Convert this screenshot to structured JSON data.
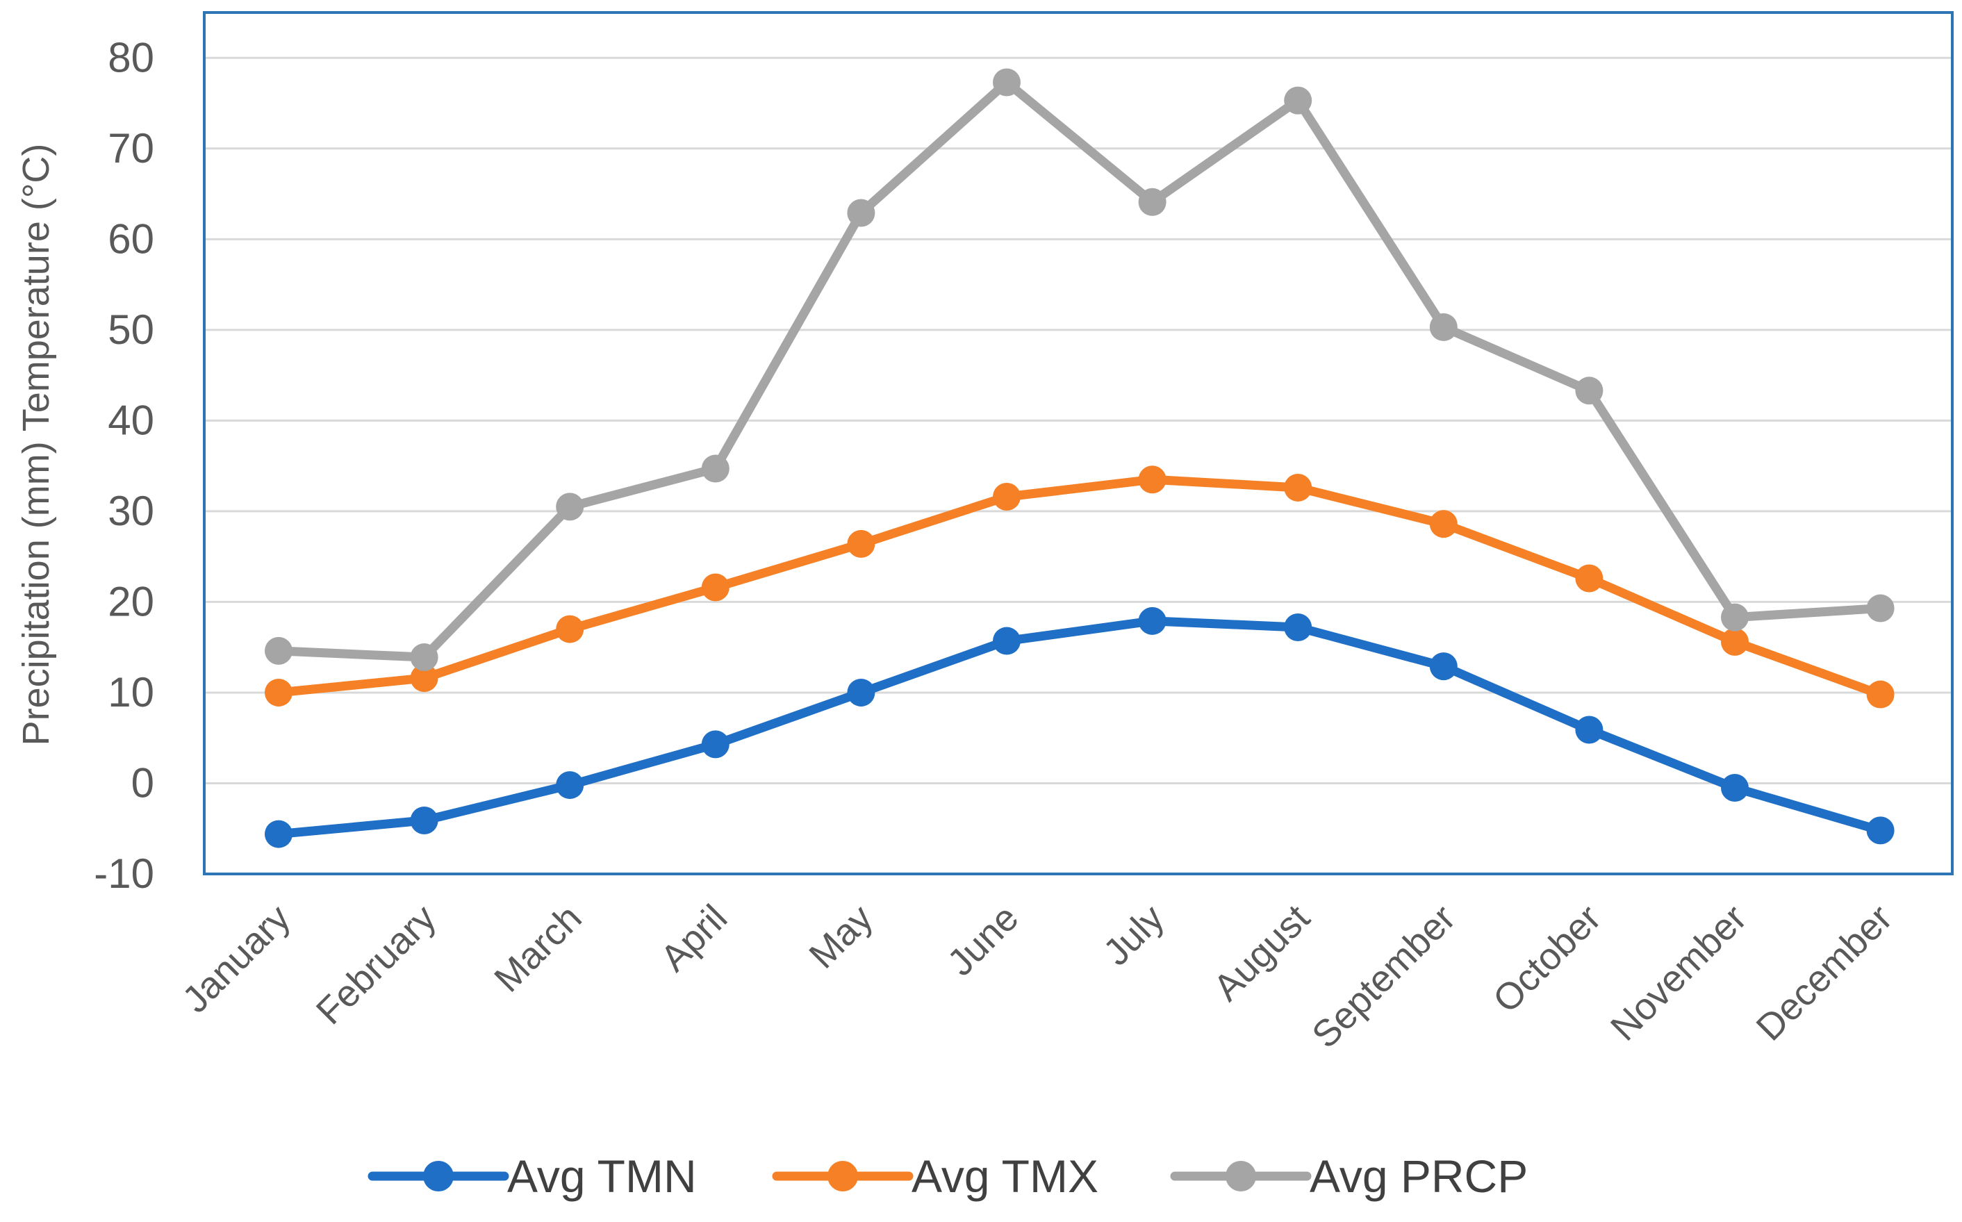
{
  "chart_data": {
    "type": "line",
    "ylabel": "Precipitation  (mm) Temperature (°C)",
    "xlabel": "",
    "title": "",
    "ylim": [
      -10,
      80
    ],
    "yticks": [
      "-10",
      "0",
      "10",
      "20",
      "30",
      "40",
      "50",
      "60",
      "70",
      "80"
    ],
    "grid": true,
    "legend_position": "bottom",
    "categories": [
      "January",
      "February",
      "March",
      "April",
      "May",
      "June",
      "July",
      "August",
      "September",
      "October",
      "November",
      "December"
    ],
    "series": [
      {
        "name": "Avg TMN",
        "color": "#1f6fc6",
        "values": [
          -5.6,
          -4.1,
          -0.2,
          4.3,
          10.0,
          15.7,
          17.9,
          17.2,
          12.9,
          5.9,
          -0.5,
          -5.2
        ]
      },
      {
        "name": "Avg TMX",
        "color": "#f58025",
        "values": [
          10.0,
          11.6,
          17.0,
          21.6,
          26.4,
          31.6,
          33.5,
          32.6,
          28.6,
          22.6,
          15.6,
          9.8
        ]
      },
      {
        "name": "Avg PRCP",
        "color": "#a5a5a5",
        "values": [
          14.6,
          13.9,
          30.5,
          34.7,
          62.9,
          77.3,
          64.1,
          75.3,
          50.3,
          43.3,
          18.3,
          19.3
        ]
      }
    ]
  }
}
